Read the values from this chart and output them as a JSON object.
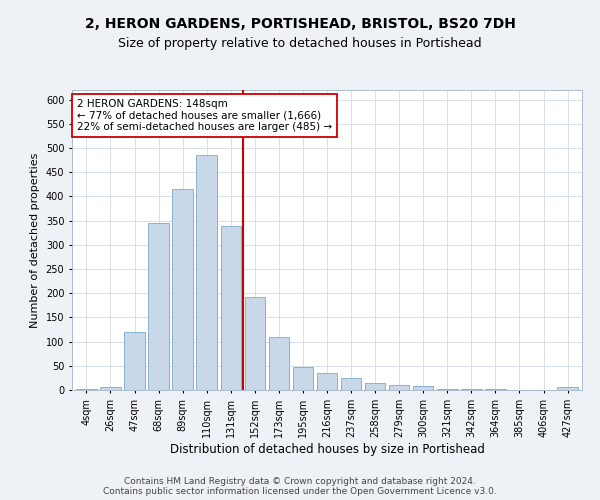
{
  "title1": "2, HERON GARDENS, PORTISHEAD, BRISTOL, BS20 7DH",
  "title2": "Size of property relative to detached houses in Portishead",
  "xlabel": "Distribution of detached houses by size in Portishead",
  "ylabel": "Number of detached properties",
  "categories": [
    "4sqm",
    "26sqm",
    "47sqm",
    "68sqm",
    "89sqm",
    "110sqm",
    "131sqm",
    "152sqm",
    "173sqm",
    "195sqm",
    "216sqm",
    "237sqm",
    "258sqm",
    "279sqm",
    "300sqm",
    "321sqm",
    "342sqm",
    "364sqm",
    "385sqm",
    "406sqm",
    "427sqm"
  ],
  "values": [
    3,
    7,
    120,
    345,
    415,
    485,
    338,
    192,
    110,
    47,
    35,
    25,
    15,
    10,
    9,
    3,
    2,
    2,
    1,
    1,
    7
  ],
  "bar_color": "#c8d8e8",
  "bar_edge_color": "#7aaac8",
  "vline_x": 6.5,
  "vline_color": "#cc0000",
  "annotation_text": "2 HERON GARDENS: 148sqm\n← 77% of detached houses are smaller (1,666)\n22% of semi-detached houses are larger (485) →",
  "annotation_box_facecolor": "#ffffff",
  "annotation_box_edgecolor": "#cc0000",
  "ylim": [
    0,
    620
  ],
  "yticks": [
    0,
    50,
    100,
    150,
    200,
    250,
    300,
    350,
    400,
    450,
    500,
    550,
    600
  ],
  "footer1": "Contains HM Land Registry data © Crown copyright and database right 2024.",
  "footer2": "Contains public sector information licensed under the Open Government Licence v3.0.",
  "bg_color": "#eef2f7",
  "plot_bg_color": "#ffffff",
  "title1_fontsize": 10,
  "title2_fontsize": 9,
  "tick_fontsize": 7,
  "ylabel_fontsize": 8,
  "xlabel_fontsize": 8.5,
  "annotation_fontsize": 7.5,
  "footer_fontsize": 6.5,
  "grid_color": "#d0dae6"
}
